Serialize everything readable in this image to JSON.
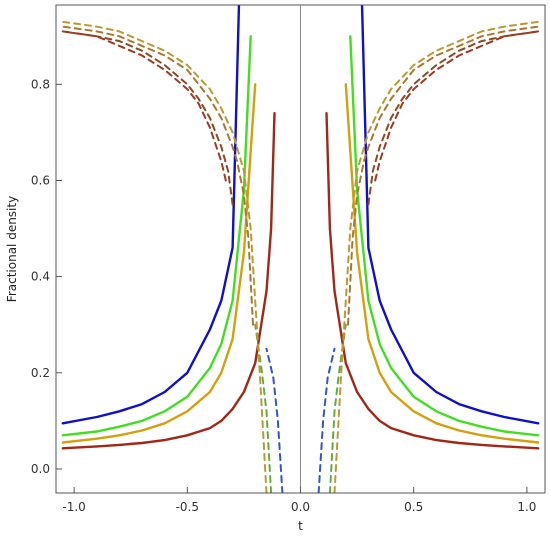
{
  "chart_data": {
    "type": "line",
    "title": "",
    "xlabel": "t",
    "ylabel": "Fractional density",
    "xlim": [
      -1.08,
      1.08
    ],
    "ylim": [
      -0.05,
      0.965
    ],
    "xticks": [
      -1.0,
      -0.5,
      0.0,
      0.5,
      1.0
    ],
    "xtick_labels": [
      "-1.0",
      "-0.5",
      "0.0",
      "0.5",
      "1.0"
    ],
    "yticks": [
      0.0,
      0.2,
      0.4,
      0.6,
      0.8
    ],
    "ytick_labels": [
      "0.0",
      "0.2",
      "0.4",
      "0.6",
      "0.8"
    ],
    "grid": false,
    "legend": "none",
    "series": [
      {
        "style": "solid",
        "color": "#1010c8",
        "x": [
          0.27,
          0.3,
          0.35,
          0.4,
          0.5,
          0.6,
          0.7,
          0.8,
          0.9,
          1.05
        ],
        "y": [
          1.0,
          0.46,
          0.35,
          0.29,
          0.2,
          0.16,
          0.135,
          0.12,
          0.108,
          0.095
        ]
      },
      {
        "style": "solid",
        "color": "#44dd22",
        "x": [
          0.22,
          0.25,
          0.3,
          0.35,
          0.4,
          0.5,
          0.6,
          0.7,
          0.8,
          0.9,
          1.05
        ],
        "y": [
          0.9,
          0.58,
          0.35,
          0.26,
          0.21,
          0.15,
          0.12,
          0.1,
          0.088,
          0.078,
          0.07
        ]
      },
      {
        "style": "solid",
        "color": "#d4a010",
        "x": [
          0.2,
          0.25,
          0.3,
          0.35,
          0.4,
          0.5,
          0.6,
          0.7,
          0.8,
          0.9,
          1.05
        ],
        "y": [
          0.8,
          0.45,
          0.27,
          0.2,
          0.16,
          0.12,
          0.095,
          0.08,
          0.07,
          0.063,
          0.055
        ]
      },
      {
        "style": "solid",
        "color": "#a02818",
        "x": [
          0.115,
          0.13,
          0.15,
          0.2,
          0.25,
          0.3,
          0.35,
          0.4,
          0.5,
          0.6,
          0.7,
          0.8,
          0.9,
          1.05
        ],
        "y": [
          0.74,
          0.5,
          0.37,
          0.22,
          0.16,
          0.125,
          0.1,
          0.085,
          0.07,
          0.06,
          0.054,
          0.05,
          0.047,
          0.043
        ]
      },
      {
        "style": "dashed",
        "color": "#3355cc",
        "x": [
          0.08,
          0.1,
          0.12,
          0.15
        ],
        "y": [
          -0.05,
          0.1,
          0.19,
          0.25
        ]
      },
      {
        "style": "dashed",
        "color": "#66aa44",
        "x": [
          0.13,
          0.15,
          0.17,
          0.2
        ],
        "y": [
          -0.05,
          0.12,
          0.2,
          0.3
        ]
      },
      {
        "style": "dashed",
        "color": "#bb9933",
        "x": [
          0.15,
          0.18,
          0.2,
          0.22,
          0.25,
          0.3,
          0.35,
          0.4,
          0.5,
          0.6,
          0.7,
          0.8,
          0.9,
          1.05
        ],
        "y": [
          -0.05,
          0.2,
          0.35,
          0.5,
          0.62,
          0.7,
          0.75,
          0.79,
          0.84,
          0.87,
          0.89,
          0.91,
          0.92,
          0.93
        ]
      },
      {
        "style": "dashed",
        "color": "#aa7733",
        "x": [
          0.21,
          0.23,
          0.25,
          0.28,
          0.3,
          0.35,
          0.4,
          0.45,
          0.5,
          0.6,
          0.7,
          0.8,
          0.9,
          1.05
        ],
        "y": [
          0.3,
          0.48,
          0.57,
          0.64,
          0.67,
          0.73,
          0.77,
          0.8,
          0.83,
          0.86,
          0.88,
          0.9,
          0.91,
          0.92
        ]
      },
      {
        "style": "dashed",
        "color": "#8a4a22",
        "x": [
          0.3,
          0.32,
          0.35,
          0.4,
          0.45,
          0.5,
          0.6,
          0.7,
          0.8,
          0.9,
          1.05
        ],
        "y": [
          0.55,
          0.62,
          0.67,
          0.73,
          0.77,
          0.8,
          0.84,
          0.87,
          0.89,
          0.9,
          0.91
        ]
      },
      {
        "style": "dashed",
        "color": "#a03822",
        "x": [
          0.33,
          0.35,
          0.4,
          0.45,
          0.5,
          0.6,
          0.7,
          0.8,
          0.9,
          1.05
        ],
        "y": [
          0.6,
          0.64,
          0.71,
          0.76,
          0.79,
          0.83,
          0.86,
          0.88,
          0.9,
          0.91
        ]
      }
    ],
    "mirrored": true
  }
}
